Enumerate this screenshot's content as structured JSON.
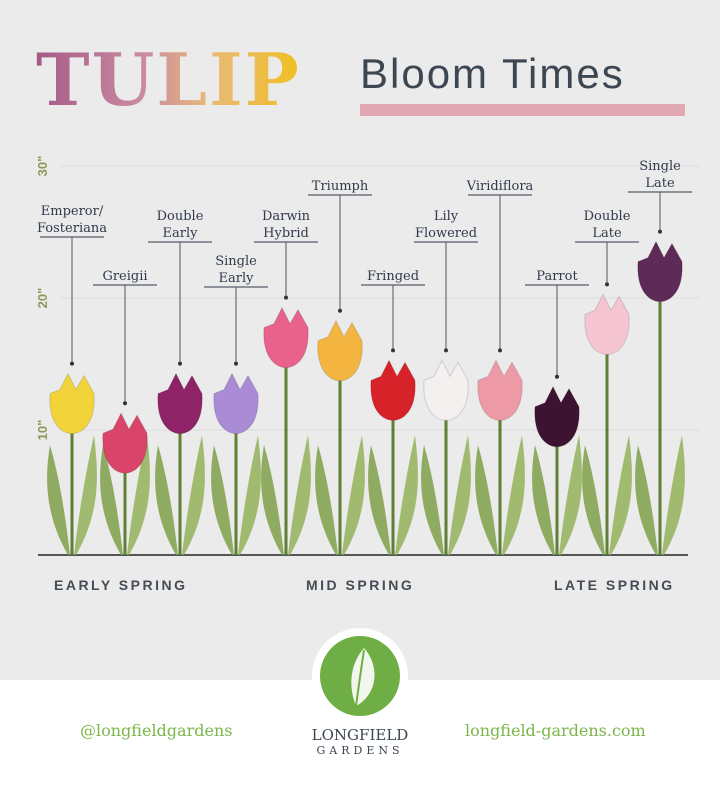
{
  "title": {
    "main": "TULIP",
    "sub": "Bloom Times"
  },
  "axis": {
    "ticks": [
      "10\"",
      "20\"",
      "30\""
    ],
    "unit": "inches"
  },
  "seasons": [
    "EARLY SPRING",
    "MID SPRING",
    "LATE SPRING"
  ],
  "tulips": [
    {
      "name": [
        "Emperor/",
        "Fosteriana"
      ],
      "color": "#f2d43a",
      "height_in": 12
    },
    {
      "name": [
        "Greigii"
      ],
      "color": "#d9456a",
      "height_in": 9
    },
    {
      "name": [
        "Double",
        "Early"
      ],
      "color": "#8e2368",
      "height_in": 12
    },
    {
      "name": [
        "Single",
        "Early"
      ],
      "color": "#a98bd6",
      "height_in": 12
    },
    {
      "name": [
        "Darwin",
        "Hybrid"
      ],
      "color": "#e8628c",
      "height_in": 17
    },
    {
      "name": [
        "Triumph"
      ],
      "color": "#f3b440",
      "height_in": 16
    },
    {
      "name": [
        "Fringed"
      ],
      "color": "#d8222a",
      "height_in": 13
    },
    {
      "name": [
        "Lily",
        "Flowered"
      ],
      "color": "#f4f0f0",
      "height_in": 13
    },
    {
      "name": [
        "Viridiflora"
      ],
      "color": "#ee9aa6",
      "height_in": 13
    },
    {
      "name": [
        "Parrot"
      ],
      "color": "#3c1330",
      "height_in": 11
    },
    {
      "name": [
        "Double",
        "Late"
      ],
      "color": "#f5c6d2",
      "height_in": 18
    },
    {
      "name": [
        "Single",
        "Late"
      ],
      "color": "#5e2a58",
      "height_in": 22
    }
  ],
  "footer": {
    "instagram": "@longfieldgardens",
    "website": "longfield-gardens.com",
    "logo_line1": "LONGFIELD",
    "logo_line2": "GARDENS"
  }
}
